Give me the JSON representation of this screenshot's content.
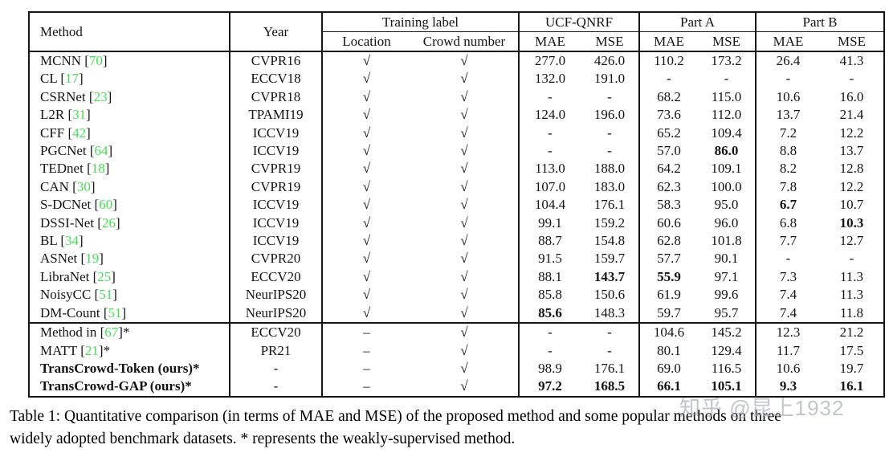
{
  "colors": {
    "citation_green": "#45de53",
    "border": "#161616",
    "watermark_gray": "#a9b0b6"
  },
  "table": {
    "header": {
      "method": "Method",
      "year": "Year",
      "groups": [
        {
          "label": "Training label",
          "cols": [
            "Location",
            "Crowd number"
          ]
        },
        {
          "label": "UCF-QNRF",
          "cols": [
            "MAE",
            "MSE"
          ]
        },
        {
          "label": "Part A",
          "cols": [
            "MAE",
            "MSE"
          ]
        },
        {
          "label": "Part B",
          "cols": [
            "MAE",
            "MSE"
          ]
        }
      ]
    },
    "rows": [
      {
        "method": "MCNN",
        "cite": "70",
        "star": false,
        "bold_method": false,
        "year": "CVPR16",
        "location": "√",
        "crowd": "√",
        "values": [
          "277.0",
          "426.0",
          "110.2",
          "173.2",
          "26.4",
          "41.3"
        ],
        "bold": [
          false,
          false,
          false,
          false,
          false,
          false
        ]
      },
      {
        "method": "CL",
        "cite": "17",
        "star": false,
        "bold_method": false,
        "year": "ECCV18",
        "location": "√",
        "crowd": "√",
        "values": [
          "132.0",
          "191.0",
          "-",
          "-",
          "-",
          "-"
        ],
        "bold": [
          false,
          false,
          false,
          false,
          false,
          false
        ]
      },
      {
        "method": "CSRNet",
        "cite": "23",
        "star": false,
        "bold_method": false,
        "year": "CVPR18",
        "location": "√",
        "crowd": "√",
        "values": [
          "-",
          "-",
          "68.2",
          "115.0",
          "10.6",
          "16.0"
        ],
        "bold": [
          false,
          false,
          false,
          false,
          false,
          false
        ]
      },
      {
        "method": "L2R",
        "cite": "31",
        "star": false,
        "bold_method": false,
        "year": "TPAMI19",
        "location": "√",
        "crowd": "√",
        "values": [
          "124.0",
          "196.0",
          "73.6",
          "112.0",
          "13.7",
          "21.4"
        ],
        "bold": [
          false,
          false,
          false,
          false,
          false,
          false
        ]
      },
      {
        "method": "CFF",
        "cite": "42",
        "star": false,
        "bold_method": false,
        "year": "ICCV19",
        "location": "√",
        "crowd": "√",
        "values": [
          "-",
          "-",
          "65.2",
          "109.4",
          "7.2",
          "12.2"
        ],
        "bold": [
          false,
          false,
          false,
          false,
          false,
          false
        ]
      },
      {
        "method": "PGCNet",
        "cite": "64",
        "star": false,
        "bold_method": false,
        "year": "ICCV19",
        "location": "√",
        "crowd": "√",
        "values": [
          "-",
          "-",
          "57.0",
          "86.0",
          "8.8",
          "13.7"
        ],
        "bold": [
          false,
          false,
          false,
          true,
          false,
          false
        ]
      },
      {
        "method": "TEDnet",
        "cite": "18",
        "star": false,
        "bold_method": false,
        "year": "CVPR19",
        "location": "√",
        "crowd": "√",
        "values": [
          "113.0",
          "188.0",
          "64.2",
          "109.1",
          "8.2",
          "12.8"
        ],
        "bold": [
          false,
          false,
          false,
          false,
          false,
          false
        ]
      },
      {
        "method": "CAN",
        "cite": "30",
        "star": false,
        "bold_method": false,
        "year": "CVPR19",
        "location": "√",
        "crowd": "√",
        "values": [
          "107.0",
          "183.0",
          "62.3",
          "100.0",
          "7.8",
          "12.2"
        ],
        "bold": [
          false,
          false,
          false,
          false,
          false,
          false
        ]
      },
      {
        "method": "S-DCNet",
        "cite": "60",
        "star": false,
        "bold_method": false,
        "year": "ICCV19",
        "location": "√",
        "crowd": "√",
        "values": [
          "104.4",
          "176.1",
          "58.3",
          "95.0",
          "6.7",
          "10.7"
        ],
        "bold": [
          false,
          false,
          false,
          false,
          true,
          false
        ]
      },
      {
        "method": "DSSI-Net",
        "cite": "26",
        "star": false,
        "bold_method": false,
        "year": "ICCV19",
        "location": "√",
        "crowd": "√",
        "values": [
          "99.1",
          "159.2",
          "60.6",
          "96.0",
          "6.8",
          "10.3"
        ],
        "bold": [
          false,
          false,
          false,
          false,
          false,
          true
        ]
      },
      {
        "method": "BL",
        "cite": "34",
        "star": false,
        "bold_method": false,
        "year": "ICCV19",
        "location": "√",
        "crowd": "√",
        "values": [
          "88.7",
          "154.8",
          "62.8",
          "101.8",
          "7.7",
          "12.7"
        ],
        "bold": [
          false,
          false,
          false,
          false,
          false,
          false
        ]
      },
      {
        "method": "ASNet",
        "cite": "19",
        "star": false,
        "bold_method": false,
        "year": "CVPR20",
        "location": "√",
        "crowd": "√",
        "values": [
          "91.5",
          "159.7",
          "57.7",
          "90.1",
          "-",
          "-"
        ],
        "bold": [
          false,
          false,
          false,
          false,
          false,
          false
        ]
      },
      {
        "method": "LibraNet",
        "cite": "25",
        "star": false,
        "bold_method": false,
        "year": "ECCV20",
        "location": "√",
        "crowd": "√",
        "values": [
          "88.1",
          "143.7",
          "55.9",
          "97.1",
          "7.3",
          "11.3"
        ],
        "bold": [
          false,
          true,
          true,
          false,
          false,
          false
        ]
      },
      {
        "method": "NoisyCC",
        "cite": "51",
        "star": false,
        "bold_method": false,
        "year": "NeurIPS20",
        "location": "√",
        "crowd": "√",
        "values": [
          "85.8",
          "150.6",
          "61.9",
          "99.6",
          "7.4",
          "11.3"
        ],
        "bold": [
          false,
          false,
          false,
          false,
          false,
          false
        ]
      },
      {
        "method": "DM-Count",
        "cite": "51",
        "star": false,
        "bold_method": false,
        "year": "NeurIPS20",
        "location": "√",
        "crowd": "√",
        "values": [
          "85.6",
          "148.3",
          "59.7",
          "95.7",
          "7.4",
          "11.8"
        ],
        "bold": [
          true,
          false,
          false,
          false,
          false,
          false
        ]
      },
      {
        "method": "Method in",
        "cite": "67",
        "star": true,
        "bold_method": false,
        "year": "ECCV20",
        "location": "–",
        "crowd": "√",
        "section_start": true,
        "values": [
          "-",
          "-",
          "104.6",
          "145.2",
          "12.3",
          "21.2"
        ],
        "bold": [
          false,
          false,
          false,
          false,
          false,
          false
        ]
      },
      {
        "method": "MATT",
        "cite": "21",
        "star": true,
        "bold_method": false,
        "year": "PR21",
        "location": "–",
        "crowd": "√",
        "values": [
          "-",
          "-",
          "80.1",
          "129.4",
          "11.7",
          "17.5"
        ],
        "bold": [
          false,
          false,
          false,
          false,
          false,
          false
        ]
      },
      {
        "method": "TransCrowd-Token (ours)",
        "cite": null,
        "star": true,
        "bold_method": true,
        "year": "-",
        "location": "–",
        "crowd": "√",
        "values": [
          "98.9",
          "176.1",
          "69.0",
          "116.5",
          "10.6",
          "19.7"
        ],
        "bold": [
          false,
          false,
          false,
          false,
          false,
          false
        ]
      },
      {
        "method": "TransCrowd-GAP (ours)",
        "cite": null,
        "star": true,
        "bold_method": true,
        "year": "-",
        "location": "–",
        "crowd": "√",
        "values": [
          "97.2",
          "168.5",
          "66.1",
          "105.1",
          "9.3",
          "16.1"
        ],
        "bold": [
          true,
          true,
          true,
          true,
          true,
          true
        ]
      }
    ]
  },
  "caption": {
    "line1": "Table 1: Quantitative comparison (in terms of MAE and MSE) of the proposed method and some popular methods on three",
    "line2": "widely adopted benchmark datasets. * represents the weakly-supervised method."
  },
  "watermark": "知乎 @昆上1932"
}
